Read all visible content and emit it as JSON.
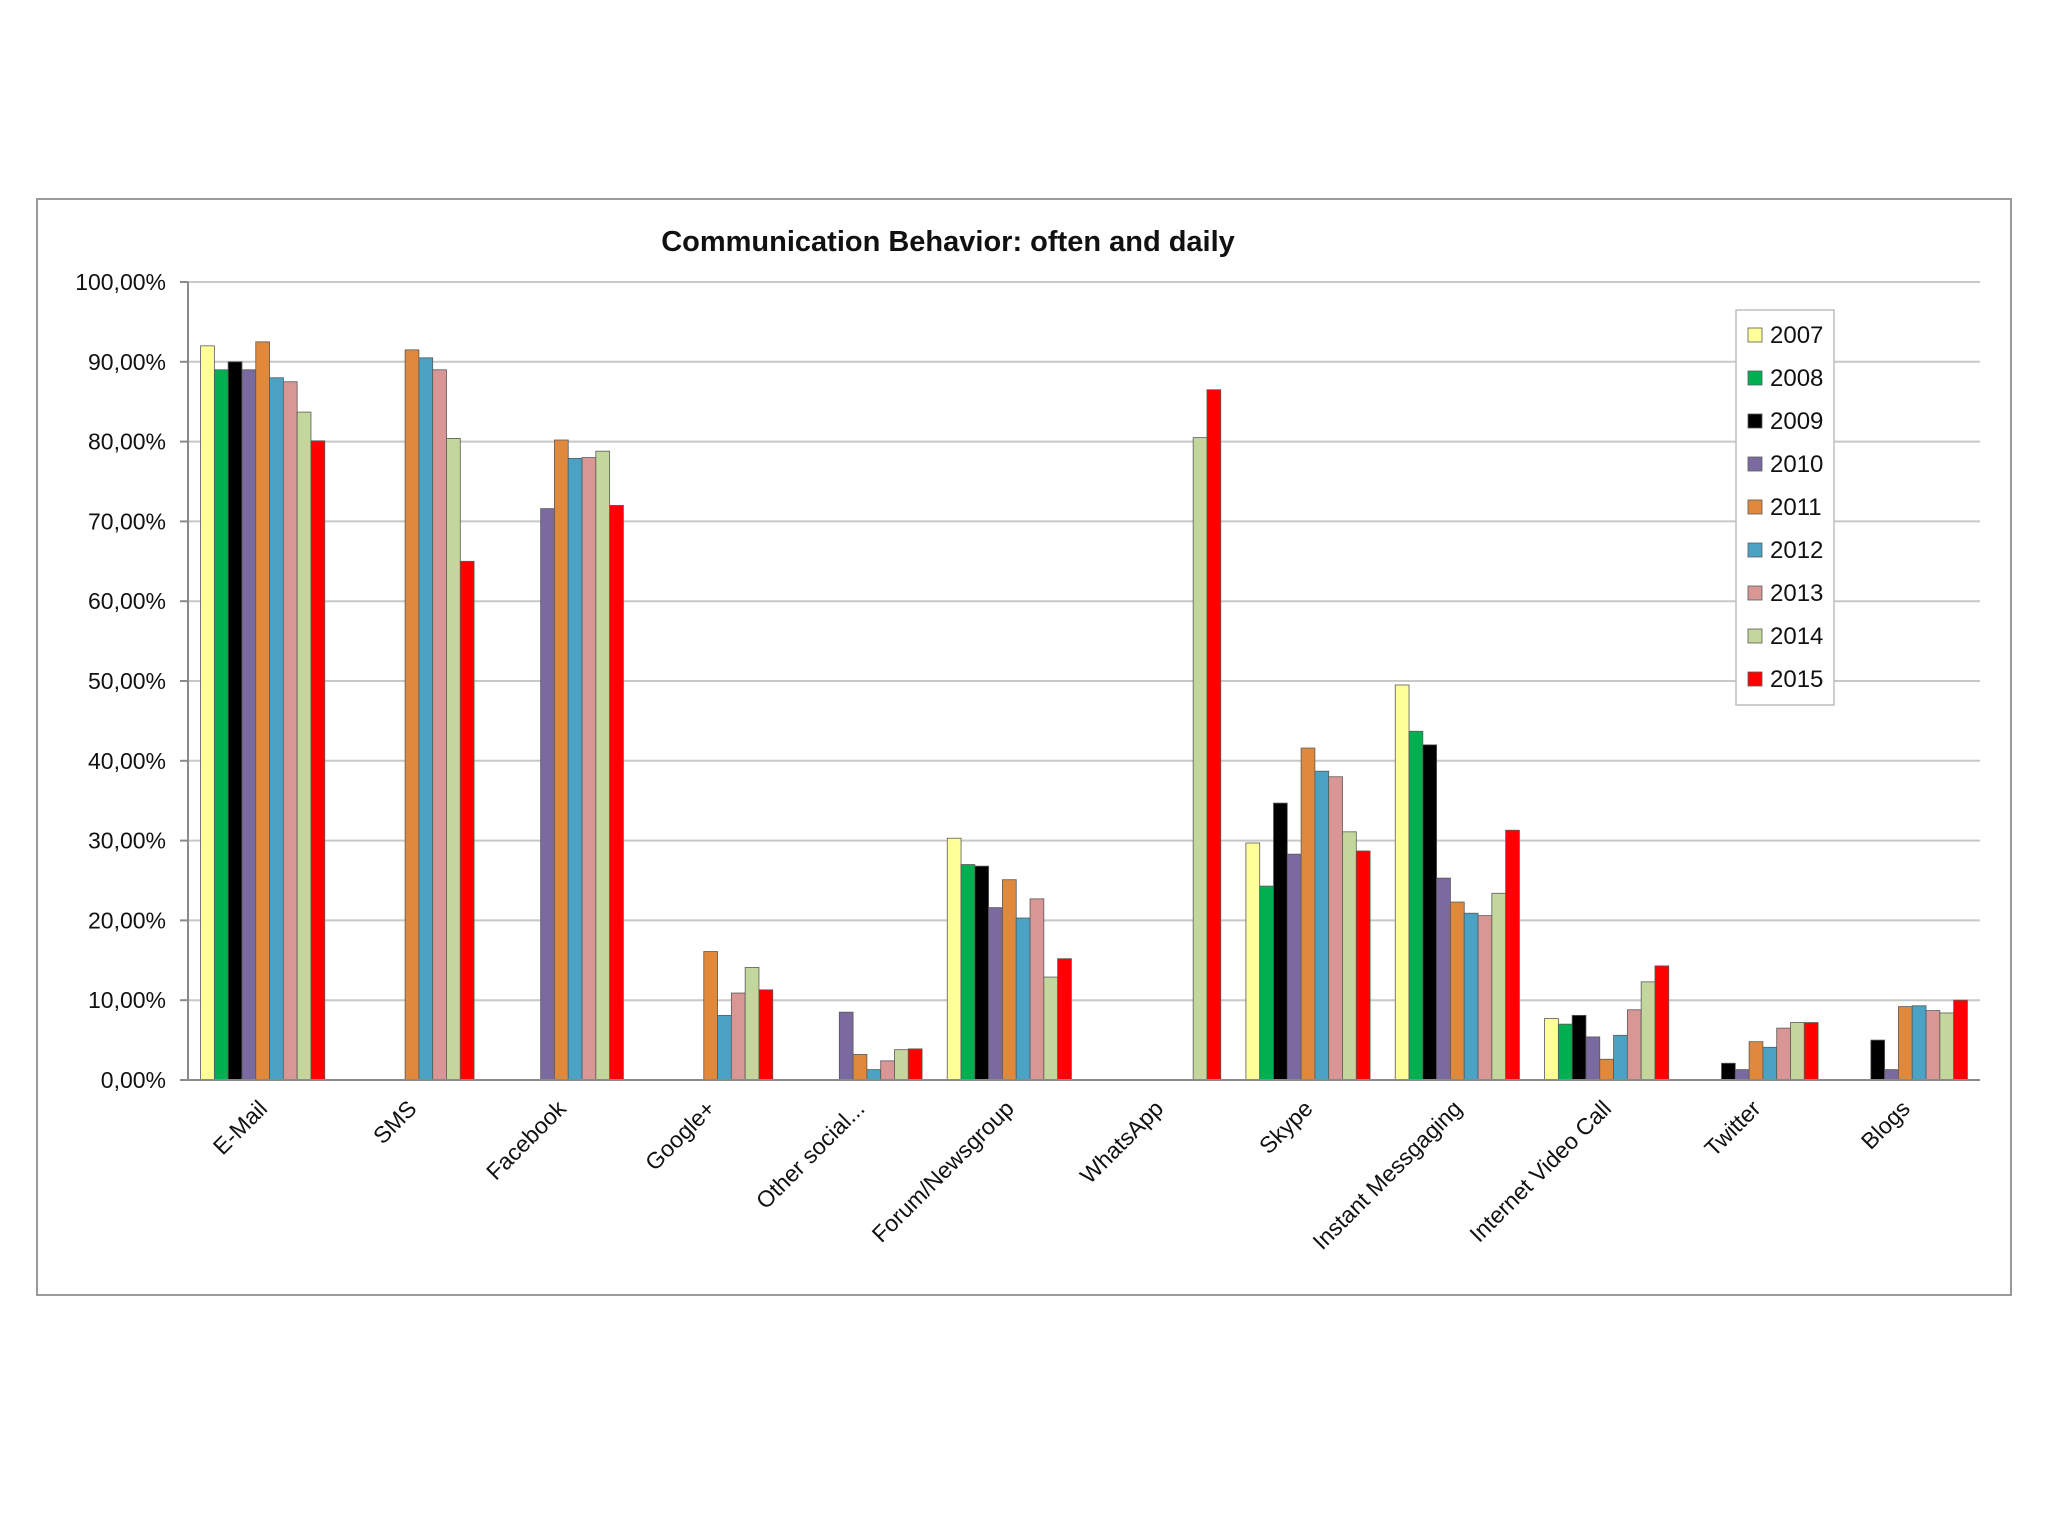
{
  "chart_data": {
    "type": "bar",
    "title": "Communication Behavior: often and daily",
    "xlabel": "",
    "ylabel": "",
    "ylim": [
      0,
      100
    ],
    "y_ticks": [
      "0,00%",
      "10,00%",
      "20,00%",
      "30,00%",
      "40,00%",
      "50,00%",
      "60,00%",
      "70,00%",
      "80,00%",
      "90,00%",
      "100,00%"
    ],
    "grid": true,
    "legend_position": "top-right",
    "categories": [
      "E-Mail",
      "SMS",
      "Facebook",
      "Google+",
      "Other social...",
      "Forum/Newsgroup",
      "WhatsApp",
      "Skype",
      "Instant Messgaging",
      "Internet Video Call",
      "Twitter",
      "Blogs"
    ],
    "series": [
      {
        "name": "2007",
        "color": "#ffff99",
        "values": [
          92,
          null,
          null,
          null,
          null,
          30.3,
          null,
          29.7,
          49.5,
          7.7,
          null,
          null
        ]
      },
      {
        "name": "2008",
        "color": "#00b050",
        "values": [
          89,
          null,
          null,
          null,
          null,
          27,
          null,
          24.3,
          43.7,
          7,
          null,
          null
        ]
      },
      {
        "name": "2009",
        "color": "#000000",
        "values": [
          90,
          null,
          null,
          null,
          null,
          26.8,
          null,
          34.7,
          42,
          8.1,
          2.1,
          5
        ]
      },
      {
        "name": "2010",
        "color": "#7b6aa0",
        "values": [
          89,
          null,
          71.6,
          null,
          8.5,
          21.6,
          null,
          28.3,
          25.3,
          5.4,
          1.3,
          1.3
        ]
      },
      {
        "name": "2011",
        "color": "#e0883c",
        "values": [
          92.5,
          91.5,
          80.2,
          16.1,
          3.2,
          25.1,
          null,
          41.6,
          22.3,
          2.6,
          4.8,
          9.2
        ]
      },
      {
        "name": "2012",
        "color": "#4aa3c4",
        "values": [
          88,
          90.5,
          77.9,
          8.1,
          1.3,
          20.3,
          null,
          38.7,
          20.9,
          5.6,
          4.1,
          9.3
        ]
      },
      {
        "name": "2013",
        "color": "#d89694",
        "values": [
          87.5,
          89,
          78,
          10.9,
          2.4,
          22.7,
          null,
          38,
          20.6,
          8.8,
          6.5,
          8.7
        ]
      },
      {
        "name": "2014",
        "color": "#c3d69b",
        "values": [
          83.7,
          80.4,
          78.8,
          14.1,
          3.8,
          12.9,
          80.5,
          31.1,
          23.4,
          12.3,
          7.2,
          8.4
        ]
      },
      {
        "name": "2015",
        "color": "#ff0000",
        "values": [
          80.1,
          65,
          72,
          11.3,
          3.9,
          15.2,
          86.5,
          28.7,
          31.3,
          14.3,
          7.2,
          10
        ]
      }
    ]
  }
}
